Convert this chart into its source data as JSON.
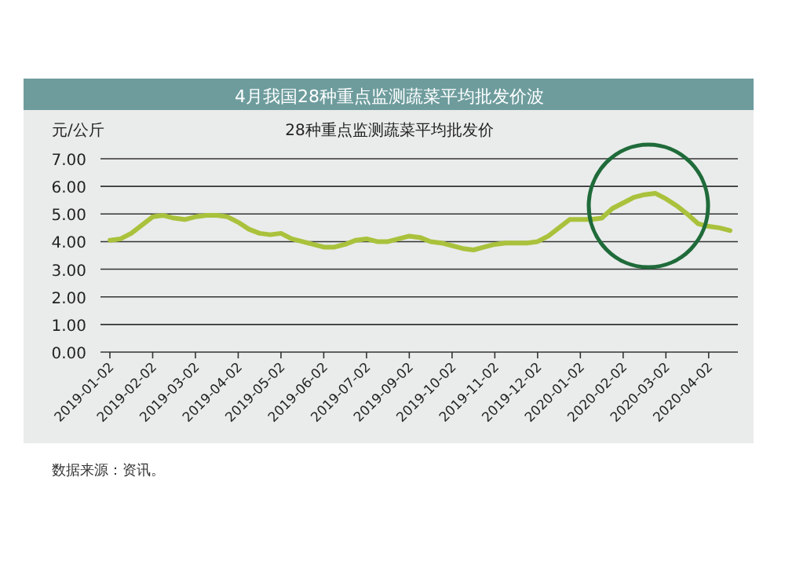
{
  "chart_data": {
    "type": "line",
    "title": "4月我国28种重点监测蔬菜平均批发价波",
    "subtitle": "28种重点监测蔬菜平均批发价",
    "ylabel": "元/公斤",
    "categories": [
      "2019-01-02",
      null,
      null,
      null,
      "2019-02-02",
      null,
      null,
      null,
      "2019-03-02",
      null,
      null,
      null,
      "2019-04-02",
      null,
      null,
      null,
      "2019-05-02",
      null,
      null,
      null,
      "2019-06-02",
      null,
      null,
      null,
      "2019-07-02",
      null,
      null,
      null,
      "2019-09-02",
      null,
      null,
      null,
      "2019-10-02",
      null,
      null,
      null,
      "2019-11-02",
      null,
      null,
      null,
      "2019-12-02",
      null,
      null,
      null,
      "2020-01-02",
      null,
      null,
      null,
      "2020-02-02",
      null,
      null,
      null,
      "2020-03-02",
      null,
      null,
      null,
      "2020-04-02",
      null,
      null
    ],
    "series": [
      {
        "color": "#a9c23c",
        "values": [
          4.05,
          4.1,
          4.3,
          4.6,
          4.9,
          4.95,
          4.85,
          4.8,
          4.9,
          4.95,
          4.95,
          4.9,
          4.7,
          4.45,
          4.3,
          4.25,
          4.3,
          4.1,
          4.0,
          3.9,
          3.8,
          3.8,
          3.9,
          4.05,
          4.1,
          4.0,
          4.0,
          4.1,
          4.2,
          4.15,
          4.0,
          3.95,
          3.85,
          3.75,
          3.7,
          3.8,
          3.9,
          3.95,
          3.95,
          3.95,
          4.0,
          4.2,
          4.5,
          4.8,
          4.8,
          4.8,
          4.85,
          5.2,
          5.4,
          5.6,
          5.7,
          5.75,
          5.55,
          5.3,
          5.0,
          4.65,
          4.55,
          4.5,
          4.4
        ]
      }
    ],
    "ylim": [
      0,
      7
    ],
    "yticks": [
      {
        "value": 0,
        "label": "0.00"
      },
      {
        "value": 1,
        "label": "1.00"
      },
      {
        "value": 2,
        "label": "2.00"
      },
      {
        "value": 3,
        "label": "3.00"
      },
      {
        "value": 4,
        "label": "4.00"
      },
      {
        "value": 5,
        "label": "5.00"
      },
      {
        "value": 6,
        "label": "6.00"
      },
      {
        "value": 7,
        "label": "7.00"
      }
    ],
    "grid": "y",
    "marker": "none",
    "line_style": "solid",
    "annotations": [
      "数据来源：资讯。"
    ]
  }
}
